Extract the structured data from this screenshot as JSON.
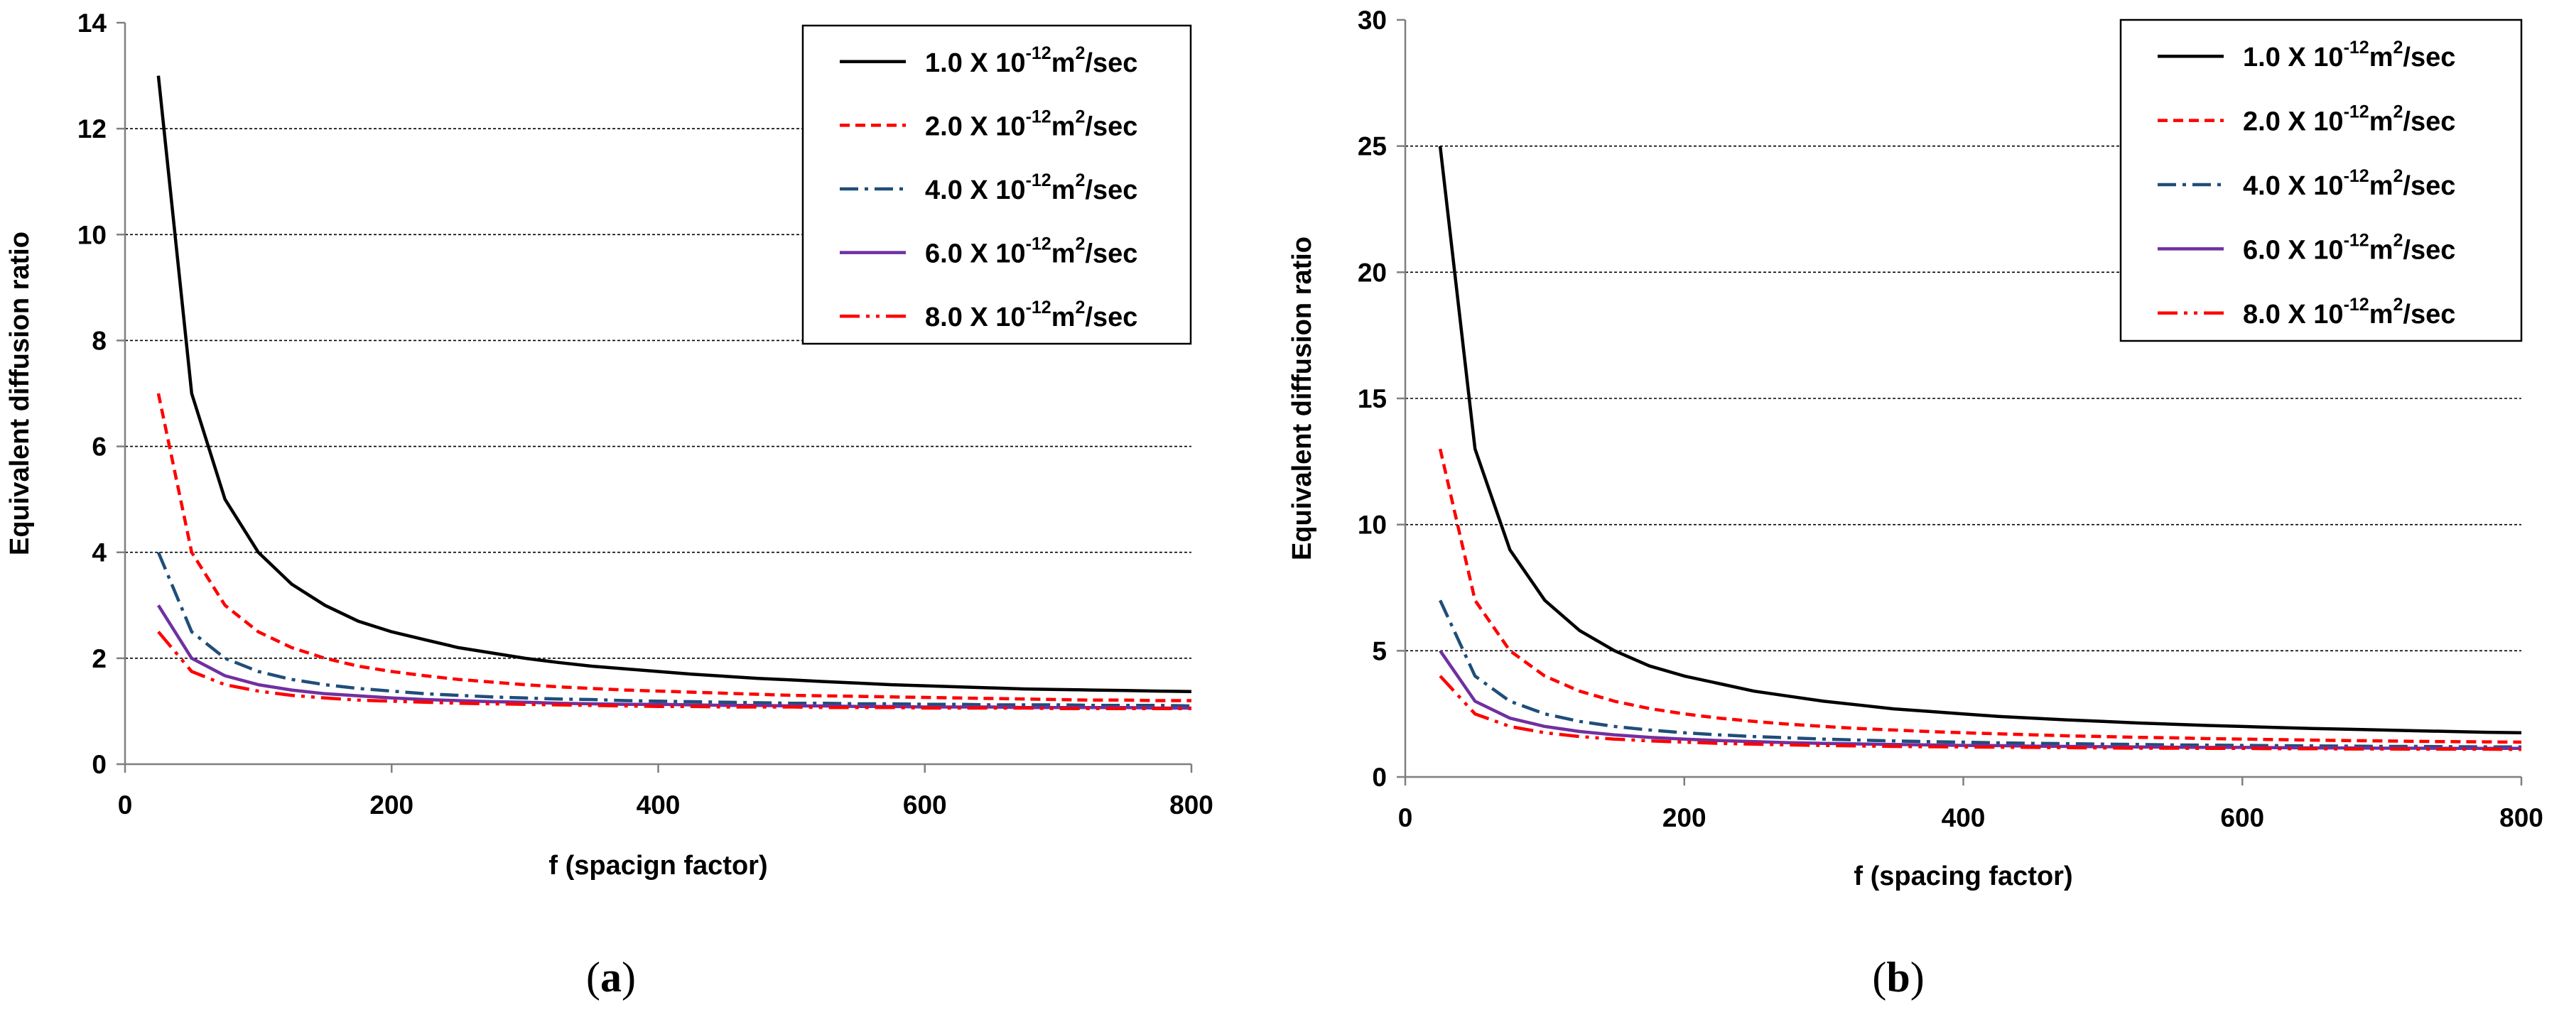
{
  "chart_data": [
    {
      "panel": "a",
      "type": "line",
      "xlabel": "f (spacign factor)",
      "ylabel": "Equivalent diffusion ratio",
      "xlim": [
        0,
        800
      ],
      "ylim": [
        0,
        14
      ],
      "xticks": [
        0,
        200,
        400,
        600,
        800
      ],
      "yticks": [
        0,
        2,
        4,
        6,
        8,
        10,
        12,
        14
      ],
      "grid": "horizontal-dashed",
      "legend_position": "top-right",
      "x": [
        25,
        50,
        75,
        100,
        125,
        150,
        175,
        200,
        225,
        250,
        275,
        300,
        325,
        350,
        375,
        400,
        425,
        450,
        475,
        500,
        525,
        550,
        575,
        600,
        625,
        650,
        675,
        700,
        725,
        750,
        775,
        800
      ],
      "series": [
        {
          "name": "1.0 X 10-12m2/sec",
          "mantissa": "1.0",
          "color": "#000000",
          "dash": "solid",
          "values": [
            13.0,
            7.0,
            5.0,
            4.0,
            3.4,
            3.0,
            2.7,
            2.5,
            2.35,
            2.2,
            2.1,
            2.0,
            1.92,
            1.85,
            1.8,
            1.75,
            1.7,
            1.66,
            1.62,
            1.59,
            1.56,
            1.53,
            1.5,
            1.48,
            1.46,
            1.44,
            1.42,
            1.41,
            1.4,
            1.39,
            1.38,
            1.37
          ]
        },
        {
          "name": "2.0 X 10-12m2/sec",
          "mantissa": "2.0",
          "color": "#ff0000",
          "dash": "dashed",
          "values": [
            7.0,
            4.0,
            3.0,
            2.5,
            2.2,
            2.0,
            1.85,
            1.75,
            1.67,
            1.6,
            1.55,
            1.5,
            1.46,
            1.43,
            1.4,
            1.38,
            1.36,
            1.34,
            1.32,
            1.3,
            1.29,
            1.28,
            1.27,
            1.26,
            1.25,
            1.24,
            1.23,
            1.22,
            1.21,
            1.21,
            1.2,
            1.2
          ]
        },
        {
          "name": "4.0 X 10-12m2/sec",
          "mantissa": "4.0",
          "color": "#1f4e79",
          "dash": "dash-dot",
          "values": [
            4.0,
            2.5,
            2.0,
            1.75,
            1.6,
            1.5,
            1.43,
            1.38,
            1.33,
            1.3,
            1.27,
            1.25,
            1.23,
            1.22,
            1.2,
            1.19,
            1.18,
            1.17,
            1.16,
            1.15,
            1.15,
            1.14,
            1.14,
            1.13,
            1.13,
            1.12,
            1.12,
            1.12,
            1.11,
            1.11,
            1.11,
            1.1
          ]
        },
        {
          "name": "6.0 X 10-12m2/sec",
          "mantissa": "6.0",
          "color": "#7030a0",
          "dash": "solid",
          "values": [
            3.0,
            2.0,
            1.67,
            1.5,
            1.4,
            1.33,
            1.29,
            1.25,
            1.22,
            1.2,
            1.18,
            1.17,
            1.15,
            1.14,
            1.13,
            1.13,
            1.12,
            1.11,
            1.11,
            1.1,
            1.1,
            1.09,
            1.09,
            1.08,
            1.08,
            1.08,
            1.07,
            1.07,
            1.07,
            1.07,
            1.06,
            1.06
          ]
        },
        {
          "name": "8.0 X 10-12m2/sec",
          "mantissa": "8.0",
          "color": "#ff0000",
          "dash": "dash-dot-dot",
          "values": [
            2.5,
            1.75,
            1.5,
            1.38,
            1.3,
            1.25,
            1.21,
            1.19,
            1.17,
            1.15,
            1.14,
            1.13,
            1.12,
            1.11,
            1.1,
            1.09,
            1.09,
            1.08,
            1.08,
            1.08,
            1.07,
            1.07,
            1.07,
            1.06,
            1.06,
            1.06,
            1.06,
            1.05,
            1.05,
            1.05,
            1.05,
            1.05
          ]
        }
      ]
    },
    {
      "panel": "b",
      "type": "line",
      "xlabel": "f (spacing factor)",
      "ylabel": "Equivalent diffusion ratio",
      "xlim": [
        0,
        800
      ],
      "ylim": [
        0,
        30
      ],
      "xticks": [
        0,
        200,
        400,
        600,
        800
      ],
      "yticks": [
        0,
        5,
        10,
        15,
        20,
        25,
        30
      ],
      "grid": "horizontal-dashed",
      "legend_position": "top-right",
      "x": [
        25,
        50,
        75,
        100,
        125,
        150,
        175,
        200,
        225,
        250,
        275,
        300,
        325,
        350,
        375,
        400,
        425,
        450,
        475,
        500,
        525,
        550,
        575,
        600,
        625,
        650,
        675,
        700,
        725,
        750,
        775,
        800
      ],
      "series": [
        {
          "name": "1.0 X 10-12m2/sec",
          "mantissa": "1.0",
          "color": "#000000",
          "dash": "solid",
          "values": [
            25.0,
            13.0,
            9.0,
            7.0,
            5.8,
            5.0,
            4.4,
            4.0,
            3.7,
            3.4,
            3.2,
            3.0,
            2.85,
            2.7,
            2.6,
            2.5,
            2.4,
            2.33,
            2.26,
            2.2,
            2.14,
            2.09,
            2.04,
            2.0,
            1.96,
            1.92,
            1.89,
            1.86,
            1.83,
            1.8,
            1.77,
            1.75
          ]
        },
        {
          "name": "2.0 X 10-12m2/sec",
          "mantissa": "2.0",
          "color": "#ff0000",
          "dash": "dashed",
          "values": [
            13.0,
            7.0,
            5.0,
            4.0,
            3.4,
            3.0,
            2.71,
            2.5,
            2.33,
            2.2,
            2.09,
            2.0,
            1.92,
            1.86,
            1.8,
            1.75,
            1.71,
            1.67,
            1.63,
            1.6,
            1.57,
            1.55,
            1.52,
            1.5,
            1.48,
            1.46,
            1.44,
            1.43,
            1.41,
            1.4,
            1.39,
            1.38
          ]
        },
        {
          "name": "4.0 X 10-12m2/sec",
          "mantissa": "4.0",
          "color": "#1f4e79",
          "dash": "dash-dot",
          "values": [
            7.0,
            4.0,
            3.0,
            2.5,
            2.2,
            2.0,
            1.86,
            1.75,
            1.67,
            1.6,
            1.55,
            1.5,
            1.46,
            1.43,
            1.4,
            1.38,
            1.35,
            1.33,
            1.32,
            1.3,
            1.29,
            1.27,
            1.26,
            1.25,
            1.24,
            1.23,
            1.22,
            1.21,
            1.21,
            1.2,
            1.19,
            1.19
          ]
        },
        {
          "name": "6.0 X 10-12m2/sec",
          "mantissa": "6.0",
          "color": "#7030a0",
          "dash": "solid",
          "values": [
            5.0,
            3.0,
            2.33,
            2.0,
            1.8,
            1.67,
            1.57,
            1.5,
            1.44,
            1.4,
            1.36,
            1.33,
            1.31,
            1.29,
            1.27,
            1.25,
            1.24,
            1.22,
            1.21,
            1.2,
            1.19,
            1.18,
            1.17,
            1.17,
            1.16,
            1.15,
            1.15,
            1.14,
            1.14,
            1.13,
            1.13,
            1.13
          ]
        },
        {
          "name": "8.0 X 10-12m2/sec",
          "mantissa": "8.0",
          "color": "#ff0000",
          "dash": "dash-dot-dot",
          "values": [
            4.0,
            2.5,
            2.0,
            1.75,
            1.6,
            1.5,
            1.43,
            1.38,
            1.33,
            1.3,
            1.27,
            1.25,
            1.23,
            1.21,
            1.2,
            1.19,
            1.18,
            1.17,
            1.16,
            1.15,
            1.14,
            1.14,
            1.13,
            1.13,
            1.12,
            1.12,
            1.11,
            1.11,
            1.1,
            1.1,
            1.1,
            1.09
          ]
        }
      ]
    }
  ],
  "panel_labels": {
    "a": {
      "open": "(",
      "letter": "a",
      "close": ")"
    },
    "b": {
      "open": "(",
      "letter": "b",
      "close": ")"
    }
  },
  "legend_format": {
    "separator": " X ",
    "base": "10",
    "exponent": "-12",
    "unit_lead": "m",
    "unit_exponent": "2",
    "unit_tail": "/sec"
  }
}
